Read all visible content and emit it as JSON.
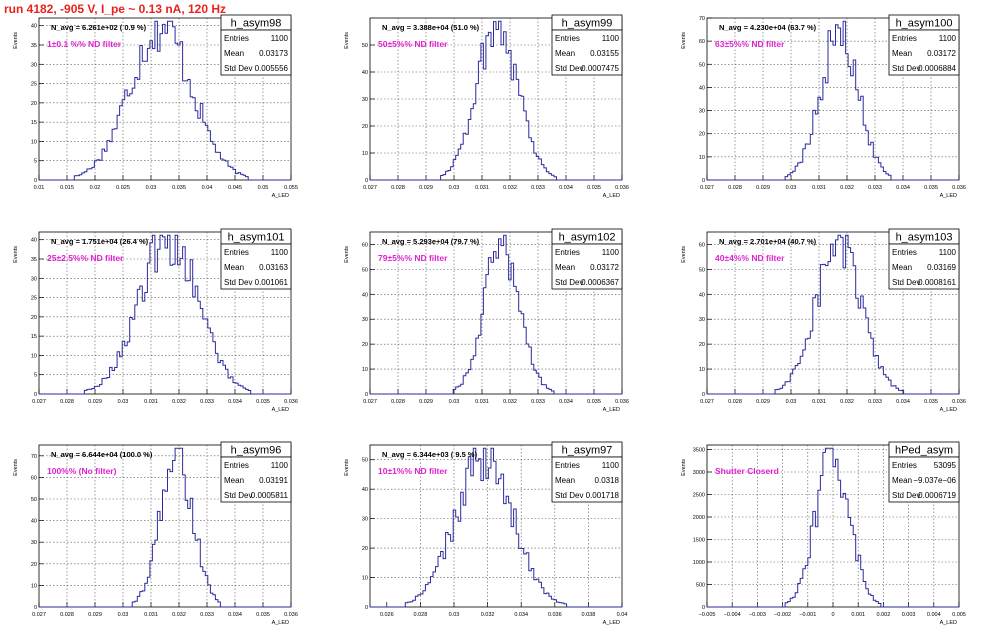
{
  "page": {
    "title": "run 4182,  -905 V, I_pe ~ 0.13 nA, 120 Hz"
  },
  "colors": {
    "histogram_line": "#2b2b9e",
    "annotation": "#e020d0",
    "title": "#e8231d",
    "grid": "#555555"
  },
  "common": {
    "ylabel": "Events",
    "xlabel": "A_LED",
    "stat_labels": [
      "Entries",
      "Mean",
      "Std Dev"
    ]
  },
  "chart_data": [
    {
      "type": "histogram",
      "name": "h_asym98",
      "navg": "N_avg = 6.261e+02 ( 0.9 %)",
      "annotation": "1±0.1 %% ND filter",
      "stats": {
        "entries": "1100",
        "mean": "0.03173",
        "std_dev": "0.005556"
      },
      "xlim": [
        0.01,
        0.055
      ],
      "ylim": [
        0,
        42
      ],
      "xticks": [
        0.01,
        0.015,
        0.02,
        0.025,
        0.03,
        0.035,
        0.04,
        0.045,
        0.05,
        0.055
      ],
      "xtick_labels": [
        "0.01",
        "0.015",
        "0.02",
        "0.025",
        "0.03",
        "0.035",
        "0.04",
        "0.045",
        "0.05",
        "0.055"
      ],
      "yticks": [
        0,
        5,
        10,
        15,
        20,
        25,
        30,
        35,
        40
      ],
      "mean": 0.03173,
      "sigma": 0.005556,
      "peak": 40,
      "grid": true
    },
    {
      "type": "histogram",
      "name": "h_asym99",
      "navg": "N_avg = 3.388e+04 (51.0 %)",
      "annotation": "50±5%% ND filter",
      "stats": {
        "entries": "1100",
        "mean": "0.03155",
        "std_dev": "0.0007475"
      },
      "xlim": [
        0.027,
        0.036
      ],
      "ylim": [
        0,
        60
      ],
      "xticks": [
        0.027,
        0.028,
        0.029,
        0.03,
        0.031,
        0.032,
        0.033,
        0.034,
        0.035,
        0.036
      ],
      "xtick_labels": [
        "0.027",
        "0.028",
        "0.029",
        "0.03",
        "0.031",
        "0.032",
        "0.033",
        "0.034",
        "0.035",
        "0.036"
      ],
      "yticks": [
        0,
        10,
        20,
        30,
        40,
        50
      ],
      "mean": 0.03155,
      "sigma": 0.0007475,
      "peak": 58,
      "grid": true
    },
    {
      "type": "histogram",
      "name": "h_asym100",
      "navg": "N_avg = 4.230e+04 (63.7 %)",
      "annotation": "63±5%% ND filter",
      "stats": {
        "entries": "1100",
        "mean": "0.03172",
        "std_dev": "0.0006884"
      },
      "xlim": [
        0.027,
        0.036
      ],
      "ylim": [
        0,
        70
      ],
      "xticks": [
        0.027,
        0.028,
        0.029,
        0.03,
        0.031,
        0.032,
        0.033,
        0.034,
        0.035,
        0.036
      ],
      "xtick_labels": [
        "0.027",
        "0.028",
        "0.029",
        "0.03",
        "0.031",
        "0.032",
        "0.033",
        "0.034",
        "0.035",
        "0.036"
      ],
      "yticks": [
        0,
        10,
        20,
        30,
        40,
        50,
        60,
        70
      ],
      "mean": 0.03172,
      "sigma": 0.0006884,
      "peak": 63,
      "grid": true
    },
    {
      "type": "histogram",
      "name": "h_asym101",
      "navg": "N_avg = 1.751e+04 (26.4 %)",
      "annotation": "25±2.5%% ND filter",
      "stats": {
        "entries": "1100",
        "mean": "0.03163",
        "std_dev": "0.001061"
      },
      "xlim": [
        0.027,
        0.036
      ],
      "ylim": [
        0,
        42
      ],
      "xticks": [
        0.027,
        0.028,
        0.029,
        0.03,
        0.031,
        0.032,
        0.033,
        0.034,
        0.035,
        0.036
      ],
      "xtick_labels": [
        "0.027",
        "0.028",
        "0.029",
        "0.03",
        "0.031",
        "0.032",
        "0.033",
        "0.034",
        "0.035",
        "0.036"
      ],
      "yticks": [
        0,
        5,
        10,
        15,
        20,
        25,
        30,
        35,
        40
      ],
      "mean": 0.03163,
      "sigma": 0.001061,
      "peak": 40,
      "grid": true
    },
    {
      "type": "histogram",
      "name": "h_asym102",
      "navg": "N_avg = 5.293e+04 (79.7 %)",
      "annotation": "79±5%% ND filter",
      "stats": {
        "entries": "1100",
        "mean": "0.03172",
        "std_dev": "0.0006367"
      },
      "xlim": [
        0.027,
        0.036
      ],
      "ylim": [
        0,
        65
      ],
      "xticks": [
        0.027,
        0.028,
        0.029,
        0.03,
        0.031,
        0.032,
        0.033,
        0.034,
        0.035,
        0.036
      ],
      "xtick_labels": [
        "0.027",
        "0.028",
        "0.029",
        "0.03",
        "0.031",
        "0.032",
        "0.033",
        "0.034",
        "0.035",
        "0.036"
      ],
      "yticks": [
        0,
        10,
        20,
        30,
        40,
        50,
        60
      ],
      "mean": 0.03172,
      "sigma": 0.0006367,
      "peak": 60,
      "grid": true
    },
    {
      "type": "histogram",
      "name": "h_asym103",
      "navg": "N_avg = 2.701e+04 (40.7 %)",
      "annotation": "40±4%% ND filter",
      "stats": {
        "entries": "1100",
        "mean": "0.03169",
        "std_dev": "0.0008161"
      },
      "xlim": [
        0.027,
        0.036
      ],
      "ylim": [
        0,
        65
      ],
      "xticks": [
        0.027,
        0.028,
        0.029,
        0.03,
        0.031,
        0.032,
        0.033,
        0.034,
        0.035,
        0.036
      ],
      "xtick_labels": [
        "0.027",
        "0.028",
        "0.029",
        "0.03",
        "0.031",
        "0.032",
        "0.033",
        "0.034",
        "0.035",
        "0.036"
      ],
      "yticks": [
        0,
        10,
        20,
        30,
        40,
        50,
        60
      ],
      "mean": 0.03169,
      "sigma": 0.0008161,
      "peak": 60,
      "grid": true
    },
    {
      "type": "histogram",
      "name": "h_asym96",
      "navg": "N_avg = 6.644e+04 (100.0 %)",
      "annotation": "100%% (No filter)",
      "stats": {
        "entries": "1100",
        "mean": "0.03191",
        "std_dev": "0.0005811"
      },
      "xlim": [
        0.027,
        0.036
      ],
      "ylim": [
        0,
        75
      ],
      "xticks": [
        0.027,
        0.028,
        0.029,
        0.03,
        0.031,
        0.032,
        0.033,
        0.034,
        0.035,
        0.036
      ],
      "xtick_labels": [
        "0.027",
        "0.028",
        "0.029",
        "0.03",
        "0.031",
        "0.032",
        "0.033",
        "0.034",
        "0.035",
        "0.036"
      ],
      "yticks": [
        0,
        10,
        20,
        30,
        40,
        50,
        60,
        70
      ],
      "mean": 0.03191,
      "sigma": 0.0005811,
      "peak": 70,
      "grid": true
    },
    {
      "type": "histogram",
      "name": "h_asym97",
      "navg": "N_avg = 6.344e+03 ( 9.5 %)",
      "annotation": "10±1%% ND filter",
      "stats": {
        "entries": "1100",
        "mean": "0.0318",
        "std_dev": "0.001718"
      },
      "xlim": [
        0.025,
        0.04
      ],
      "ylim": [
        0,
        55
      ],
      "xticks": [
        0.026,
        0.028,
        0.03,
        0.032,
        0.034,
        0.036,
        0.038,
        0.04
      ],
      "xtick_labels": [
        "0.026",
        "0.028",
        "0.03",
        "0.032",
        "0.034",
        "0.036",
        "0.038",
        "0.04"
      ],
      "yticks": [
        0,
        10,
        20,
        30,
        40,
        50
      ],
      "mean": 0.0318,
      "sigma": 0.001718,
      "peak": 50,
      "grid": true
    },
    {
      "type": "histogram",
      "name": "hPed_asym",
      "navg": "",
      "annotation": "Shutter Closerd",
      "stats": {
        "entries": "53095",
        "mean": "−9.037e−06",
        "std_dev": "0.0006719"
      },
      "xlim": [
        -0.005,
        0.005
      ],
      "ylim": [
        0,
        3600
      ],
      "xticks": [
        -0.005,
        -0.004,
        -0.003,
        -0.002,
        -0.001,
        0,
        0.001,
        0.002,
        0.003,
        0.004,
        0.005
      ],
      "xtick_labels": [
        "−0.005",
        "−0.004",
        "−0.003",
        "−0.002",
        "−0.001",
        "0",
        "0.001",
        "0.002",
        "0.003",
        "0.004",
        "0.005"
      ],
      "yticks": [
        0,
        500,
        1000,
        1500,
        2000,
        2500,
        3000,
        3500
      ],
      "mean": -9e-06,
      "sigma": 0.0006719,
      "peak": 3400,
      "grid": true
    }
  ]
}
